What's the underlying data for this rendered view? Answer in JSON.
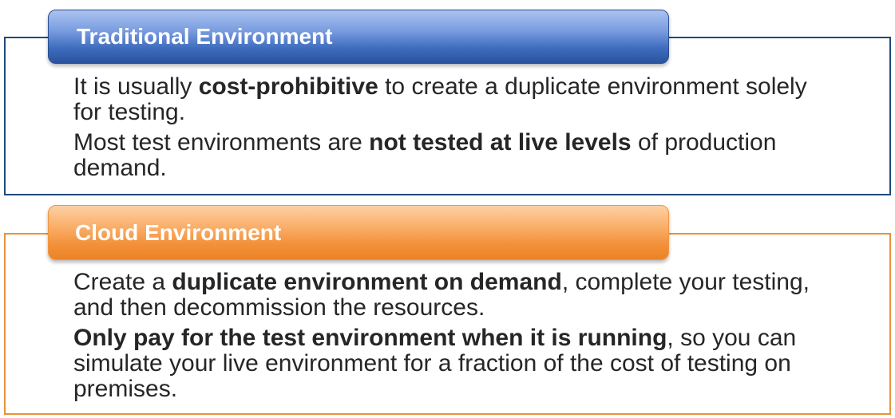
{
  "panels": [
    {
      "title": "Traditional Environment",
      "paragraphs": [
        {
          "before": "It is usually ",
          "bold": "cost-prohibitive",
          "after": " to create a duplicate environment solely for testing."
        },
        {
          "before": "Most test environments are ",
          "bold": "not tested at live levels",
          "after": " of production demand."
        }
      ]
    },
    {
      "title": "Cloud Environment",
      "paragraphs": [
        {
          "before": "Create a ",
          "bold": "duplicate environment on demand",
          "after": ", complete your testing, and then decommission the resources."
        },
        {
          "before": "",
          "bold": "Only pay for the test environment when it is running",
          "after": ", so you can simulate your live environment for a fraction of the cost of testing on premises."
        }
      ]
    }
  ],
  "colors": {
    "traditional_accent": "#20497e",
    "cloud_accent": "#e8923a",
    "text": "#262626",
    "header_text": "#ffffff"
  }
}
